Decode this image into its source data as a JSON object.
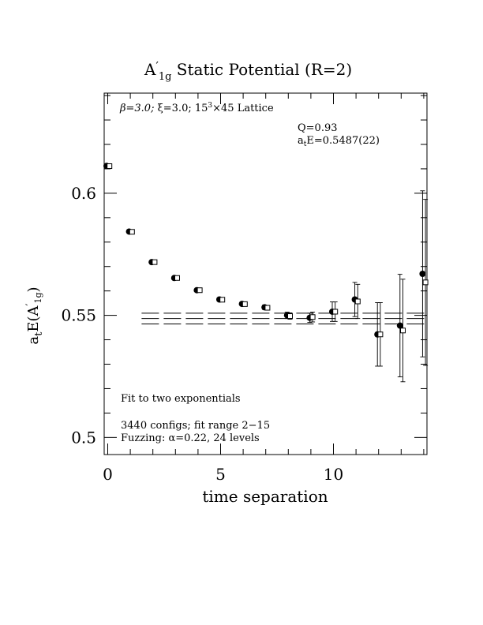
{
  "chart_data": {
    "type": "scatter",
    "title_main": "A",
    "title_prime": "′",
    "title_sub": "1g",
    "title_rest": " Static Potential (R=2)",
    "xlabel": "time separation",
    "ylabel_main": "a",
    "ylabel_t": "t",
    "ylabel_mid": "E(A",
    "ylabel_prime": "′",
    "ylabel_sub": "1g",
    "ylabel_end": ")",
    "xlim": [
      0,
      14
    ],
    "ylim": [
      0.493,
      0.641
    ],
    "x_ticks": [
      0,
      5,
      10
    ],
    "x_tick_labels": [
      "0",
      "5",
      "10"
    ],
    "y_ticks": [
      0.5,
      0.55,
      0.6
    ],
    "y_tick_labels": [
      "0.5",
      "0.55",
      "0.6"
    ],
    "annotations": {
      "lattice_beta": "β=3.0; ",
      "lattice_xi": "ξ=3.0; 15",
      "lattice_sup": "3",
      "lattice_rest": "×45 Lattice",
      "q_value": "Q=0.93",
      "energy_a": "a",
      "energy_t": "t",
      "energy_rest": "E=0.5487(22)",
      "fit_note": "Fit to two exponentials",
      "configs": "3440 configs; fit range 2−15",
      "fuzzing": "Fuzzing: α=0.22, 24 levels"
    },
    "fit": {
      "value": 0.5487,
      "error": 0.0022,
      "x_range": [
        1.5,
        14
      ]
    },
    "series": [
      {
        "marker": "filled-circle",
        "points": [
          {
            "x": 0,
            "y": 0.6112,
            "err": 0.0004
          },
          {
            "x": 1,
            "y": 0.5843,
            "err": 0.0004
          },
          {
            "x": 2,
            "y": 0.5718,
            "err": 0.0004
          },
          {
            "x": 3,
            "y": 0.5653,
            "err": 0.0005
          },
          {
            "x": 4,
            "y": 0.5603,
            "err": 0.0005
          },
          {
            "x": 5,
            "y": 0.5565,
            "err": 0.0006
          },
          {
            "x": 6,
            "y": 0.5547,
            "err": 0.0007
          },
          {
            "x": 7,
            "y": 0.5533,
            "err": 0.0009
          },
          {
            "x": 8,
            "y": 0.55,
            "err": 0.0013
          },
          {
            "x": 9,
            "y": 0.549,
            "err": 0.0019
          },
          {
            "x": 10,
            "y": 0.5515,
            "err": 0.004
          },
          {
            "x": 11,
            "y": 0.5565,
            "err": 0.007
          },
          {
            "x": 12,
            "y": 0.5422,
            "err": 0.013
          },
          {
            "x": 13,
            "y": 0.5458,
            "err": 0.021
          },
          {
            "x": 14,
            "y": 0.567,
            "err": 0.034
          }
        ]
      },
      {
        "marker": "open-square",
        "points": [
          {
            "x": 0,
            "y": 0.6111,
            "err": 0.0004
          },
          {
            "x": 1,
            "y": 0.5842,
            "err": 0.0004
          },
          {
            "x": 2,
            "y": 0.5718,
            "err": 0.0004
          },
          {
            "x": 3,
            "y": 0.5653,
            "err": 0.0005
          },
          {
            "x": 4,
            "y": 0.5603,
            "err": 0.0005
          },
          {
            "x": 5,
            "y": 0.5564,
            "err": 0.0006
          },
          {
            "x": 6,
            "y": 0.5546,
            "err": 0.0007
          },
          {
            "x": 7,
            "y": 0.5531,
            "err": 0.0009
          },
          {
            "x": 8,
            "y": 0.5497,
            "err": 0.0013
          },
          {
            "x": 9,
            "y": 0.5493,
            "err": 0.002
          },
          {
            "x": 10,
            "y": 0.5515,
            "err": 0.004
          },
          {
            "x": 11,
            "y": 0.5557,
            "err": 0.007
          },
          {
            "x": 12,
            "y": 0.5422,
            "err": 0.013
          },
          {
            "x": 13,
            "y": 0.5438,
            "err": 0.021
          },
          {
            "x": 14,
            "y": 0.5635,
            "err": 0.034
          }
        ]
      }
    ]
  }
}
